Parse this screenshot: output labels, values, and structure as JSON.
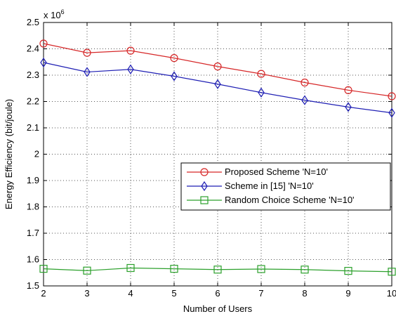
{
  "chart_data": {
    "type": "line",
    "title": "",
    "xlabel": "Number of Users",
    "ylabel": "Energy Efficiency (bit/joule)",
    "y_multiplier": "x 10",
    "y_multiplier_exponent": "6",
    "xlim": [
      2,
      10
    ],
    "ylim": [
      1.5,
      2.5
    ],
    "x_ticks": [
      "2",
      "3",
      "4",
      "5",
      "6",
      "7",
      "8",
      "9",
      "10"
    ],
    "y_ticks": [
      "1.5",
      "1.6",
      "1.7",
      "1.8",
      "1.9",
      "2",
      "2.1",
      "2.2",
      "2.3",
      "2.4",
      "2.5"
    ],
    "grid": true,
    "legend_position": "center-right",
    "x": [
      2,
      3,
      4,
      5,
      6,
      7,
      8,
      9,
      10
    ],
    "series": [
      {
        "name": "Proposed Scheme 'N=10'",
        "color": "#d62728",
        "marker": "circle",
        "values": [
          2.42,
          2.385,
          2.393,
          2.365,
          2.333,
          2.305,
          2.272,
          2.243,
          2.22
        ]
      },
      {
        "name": "Scheme in [15] 'N=10'",
        "color": "#1f1fb4",
        "marker": "diamond",
        "values": [
          2.348,
          2.312,
          2.322,
          2.296,
          2.266,
          2.234,
          2.205,
          2.179,
          2.157
        ]
      },
      {
        "name": "Random Choice Scheme 'N=10'",
        "color": "#2ca02c",
        "marker": "square",
        "values": [
          1.565,
          1.558,
          1.568,
          1.565,
          1.562,
          1.564,
          1.562,
          1.557,
          1.554
        ]
      }
    ]
  }
}
